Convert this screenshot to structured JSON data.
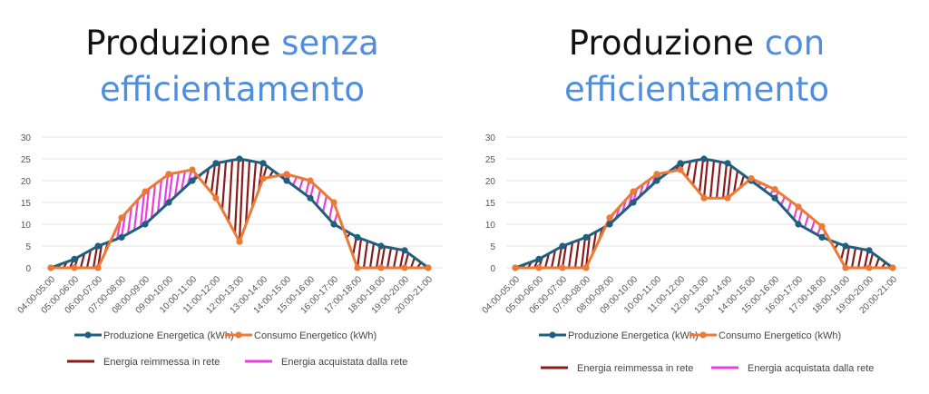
{
  "colors": {
    "production": "#1f5f7f",
    "consumption": "#ec7a35",
    "reimmessa": "#8b1a1a",
    "acquistata": "#e83fe0",
    "title_accent": "#4f8ddf"
  },
  "chart_data": [
    {
      "type": "line",
      "title": {
        "prefix": "Produzione ",
        "accent": "senza",
        "line2": "efficientamento"
      },
      "categories": [
        "04:00-05:00",
        "05:00-06:00",
        "06:00-07:00",
        "07:00-08:00",
        "08:00-09:00",
        "09:00-10:00",
        "10:00-11:00",
        "11:00-12:00",
        "12:00-13:00",
        "13:00-14:00",
        "14:00-15:00",
        "15:00-16:00",
        "16:00-17:00",
        "17:00-18:00",
        "18:00-19:00",
        "19:00-20:00",
        "20:00-21:00"
      ],
      "ylim": [
        0,
        30
      ],
      "yticks": [
        0,
        5,
        10,
        15,
        20,
        25,
        30
      ],
      "grid": true,
      "series": [
        {
          "name": "Produzione Energetica (kWh)",
          "values": [
            0,
            2,
            5,
            7,
            10,
            15,
            20,
            24,
            25,
            24,
            20,
            16,
            10,
            7,
            5,
            4,
            0
          ]
        },
        {
          "name": "Consumo Energetico (kWh)",
          "values": [
            0,
            0,
            0,
            11.5,
            17.5,
            21.5,
            22.5,
            16,
            6,
            20.5,
            21.5,
            20,
            15,
            0,
            0,
            0,
            0
          ]
        }
      ],
      "legend": [
        "Energia reimmessa in rete",
        "Energia acquistata dalla rete"
      ],
      "legend_placement": "bottom"
    },
    {
      "type": "line",
      "title": {
        "prefix": "Produzione ",
        "accent": "con",
        "line2": "efficientamento"
      },
      "categories": [
        "04:00-05:00",
        "05:00-06:00",
        "06:00-07:00",
        "07:00-08:00",
        "08:00-09:00",
        "09:00-10:00",
        "10:00-11:00",
        "11:00-12:00",
        "12:00-13:00",
        "13:00-14:00",
        "14:00-15:00",
        "15:00-16:00",
        "16:00-17:00",
        "17:00-18:00",
        "18:00-19:00",
        "19:00-20:00",
        "20:00-21:00"
      ],
      "ylim": [
        0,
        30
      ],
      "yticks": [
        0,
        5,
        10,
        15,
        20,
        25,
        30
      ],
      "grid": true,
      "series": [
        {
          "name": "Produzione Energetica (kWh)",
          "values": [
            0,
            2,
            5,
            7,
            10,
            15,
            20,
            24,
            25,
            24,
            20,
            16,
            10,
            7,
            5,
            4,
            0
          ]
        },
        {
          "name": "Consumo Energetico (kWh)",
          "values": [
            0,
            0,
            0,
            0,
            11.5,
            17.5,
            21.5,
            22.5,
            16,
            16,
            20.5,
            18,
            14,
            9.5,
            0,
            0,
            0
          ]
        }
      ],
      "legend": [
        "Energia reimmessa in rete",
        "Energia acquistata dalla rete"
      ],
      "legend_placement": "bottom"
    }
  ]
}
